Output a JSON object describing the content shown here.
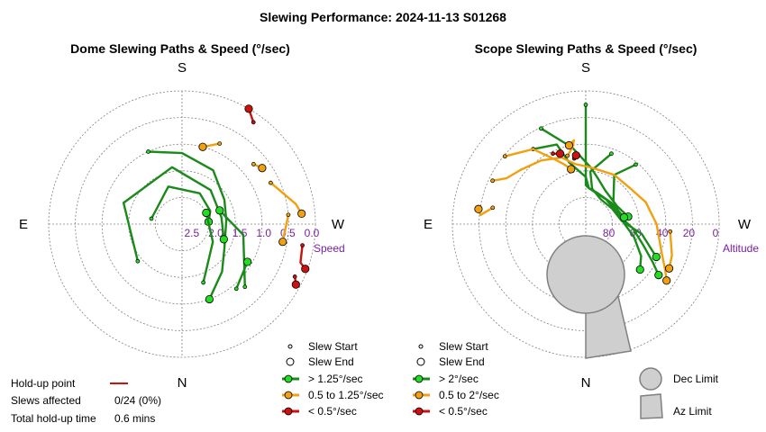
{
  "title": "Slewing Performance: 2024-11-13 S01268",
  "colors": {
    "fast": "#1a8a1a",
    "fast_dot": "#22dd22",
    "medium": "#f0a010",
    "slow": "#cc1111",
    "purple": "#7b1fa2",
    "grid": "#808080"
  },
  "dome": {
    "subtitle": "Dome Slewing Paths & Speed (°/sec)",
    "directions": {
      "s": "S",
      "n": "N",
      "e": "E",
      "w": "W"
    },
    "radial_labels": [
      "2.5",
      "2.0",
      "1.5",
      "1.0",
      "0.5",
      "0.0"
    ],
    "radial_axis_label": "Speed",
    "legend": {
      "start": "Slew Start",
      "end": "Slew End",
      "fast": "> 1.25°/sec",
      "medium": "0.5 to 1.25°/sec",
      "slow": "< 0.5°/sec"
    }
  },
  "scope": {
    "subtitle": "Scope Slewing Paths & Speed (°/sec)",
    "directions": {
      "s": "S",
      "n": "N",
      "e": "E",
      "w": "W"
    },
    "radial_labels": [
      "80",
      "60",
      "40",
      "20",
      "0"
    ],
    "radial_axis_label": "Altitude",
    "legend": {
      "start": "Slew Start",
      "end": "Slew End",
      "fast": "> 2°/sec",
      "medium": "0.5 to 2°/sec",
      "slow": "< 0.5°/sec"
    },
    "limits": {
      "dec": "Dec Limit",
      "az": "Az Limit"
    }
  },
  "holdup": {
    "point_label": "Hold-up point",
    "slews_label": "Slews affected",
    "slews_value": "0/24 (0%)",
    "time_label": "Total hold-up time",
    "time_value": "0.6 mins"
  },
  "chart_data": [
    {
      "type": "polar-paths",
      "name": "dome",
      "title": "Dome Slewing Paths & Speed (°/sec)",
      "radial_axis": "Speed",
      "radial_ticks": [
        2.5,
        2.0,
        1.5,
        1.0,
        0.5,
        0.0
      ],
      "note": "azimuth in degrees (S at top, W right, N bottom, E left); r = speed in °/sec, 0 at outer ring",
      "paths": [
        {
          "class": "fast",
          "points": [
            [
              205,
              1.2
            ],
            [
              180,
              1.4
            ],
            [
              150,
              1.6
            ],
            [
              120,
              1.9
            ],
            [
              95,
              2.0
            ],
            [
              60,
              1.9
            ],
            [
              40,
              1.6
            ],
            [
              20,
              1.2
            ]
          ]
        },
        {
          "class": "fast",
          "points": [
            [
              310,
              1.7
            ],
            [
              250,
              1.6
            ],
            [
              190,
              1.7
            ],
            [
              140,
              2.0
            ],
            [
              100,
              2.1
            ],
            [
              70,
              2.0
            ]
          ]
        },
        {
          "class": "fast",
          "points": [
            [
              45,
              1.0
            ],
            [
              80,
              1.6
            ],
            [
              110,
              2.1
            ]
          ]
        },
        {
          "class": "fast",
          "points": [
            [
              260,
              2.3
            ],
            [
              200,
              2.1
            ],
            [
              150,
              2.2
            ],
            [
              115,
              2.3
            ],
            [
              95,
              2.4
            ]
          ]
        },
        {
          "class": "fast",
          "points": [
            [
              20,
              1.6
            ],
            [
              60,
              2.2
            ],
            [
              115,
              2.4
            ]
          ]
        },
        {
          "class": "fast",
          "points": [
            [
              40,
              1.1
            ],
            [
              60,
              1.3
            ]
          ]
        },
        {
          "class": "medium",
          "points": [
            [
              130,
              0.9
            ],
            [
              125,
              0.8
            ]
          ]
        },
        {
          "class": "medium",
          "points": [
            [
              115,
              0.8
            ],
            [
              100,
              0.4
            ],
            [
              95,
              0.3
            ]
          ]
        },
        {
          "class": "medium",
          "points": [
            [
              95,
              0.6
            ],
            [
              80,
              0.7
            ]
          ]
        },
        {
          "class": "medium",
          "points": [
            [
              155,
              1.0
            ],
            [
              165,
              1.2
            ],
            [
              165,
              1.2
            ]
          ]
        },
        {
          "class": "slow",
          "points": [
            [
              145,
              0.2
            ],
            [
              150,
              0.0
            ]
          ]
        },
        {
          "class": "slow",
          "points": [
            [
              80,
              0.25
            ],
            [
              72,
              0.2
            ],
            [
              70,
              0.05
            ]
          ]
        },
        {
          "class": "slow",
          "points": [
            [
              65,
              0.2
            ],
            [
              62,
              0.1
            ]
          ]
        }
      ]
    },
    {
      "type": "polar-paths",
      "name": "scope",
      "title": "Scope Slewing Paths & Speed (°/sec)",
      "radial_axis": "Altitude",
      "radial_ticks": [
        80,
        60,
        40,
        20,
        0
      ],
      "note": "azimuth in degrees (S at top, W right, N bottom, E left); r = altitude in degrees, 90 at centre",
      "limits": {
        "dec_limit_circle": {
          "az": 0,
          "alt": 75,
          "radius_deg": 12
        },
        "az_limit_wedge": {
          "az_from": 338,
          "az_to": 358,
          "alt_from": 68,
          "alt_to": 0
        }
      },
      "paths": [
        {
          "class": "fast",
          "points": [
            [
              180,
              10
            ],
            [
              180,
              68
            ],
            [
              175,
              70
            ],
            [
              140,
              73
            ],
            [
              110,
              72
            ],
            [
              90,
              68
            ],
            [
              75,
              60
            ],
            [
              60,
              50
            ],
            [
              50,
              45
            ]
          ]
        },
        {
          "class": "fast",
          "points": [
            [
              160,
              42
            ],
            [
              175,
              58
            ],
            [
              170,
              70
            ],
            [
              150,
              75
            ],
            [
              120,
              74
            ],
            [
              95,
              70
            ],
            [
              80,
              55
            ],
            [
              65,
              40
            ]
          ]
        },
        {
          "class": "fast",
          "points": [
            [
              140,
              40
            ],
            [
              150,
              55
            ],
            [
              130,
              70
            ],
            [
              100,
              70
            ],
            [
              85,
              62
            ],
            [
              70,
              52
            ],
            [
              60,
              40
            ],
            [
              55,
              32
            ]
          ]
        },
        {
          "class": "fast",
          "points": [
            [
              205,
              20
            ],
            [
              190,
              40
            ],
            [
              175,
              55
            ],
            [
              165,
              62
            ],
            [
              150,
              68
            ],
            [
              120,
              70
            ],
            [
              100,
              65
            ]
          ]
        },
        {
          "class": "fast",
          "points": [
            [
              215,
              30
            ],
            [
              200,
              35
            ],
            [
              195,
              50
            ],
            [
              180,
              62
            ],
            [
              175,
              70
            ],
            [
              160,
              72
            ],
            [
              130,
              72
            ],
            [
              100,
              68
            ]
          ]
        },
        {
          "class": "medium",
          "points": [
            [
              230,
              20
            ],
            [
              215,
              30
            ],
            [
              205,
              45
            ],
            [
              200,
              50
            ],
            [
              195,
              55
            ]
          ]
        },
        {
          "class": "medium",
          "points": [
            [
              245,
              22
            ],
            [
              240,
              30
            ],
            [
              230,
              35
            ],
            [
              215,
              40
            ],
            [
              200,
              45
            ],
            [
              190,
              52
            ],
            [
              175,
              55
            ],
            [
              150,
              55
            ],
            [
              130,
              55
            ],
            [
              110,
              50
            ],
            [
              90,
              45
            ],
            [
              70,
              38
            ],
            [
              60,
              30
            ],
            [
              55,
              25
            ]
          ]
        },
        {
          "class": "medium",
          "points": [
            [
              260,
              28
            ],
            [
              265,
              20
            ],
            [
              262,
              18
            ]
          ]
        },
        {
          "class": "medium",
          "points": [
            [
              195,
              45
            ],
            [
              190,
              40
            ],
            [
              188,
              35
            ],
            [
              192,
              38
            ]
          ]
        },
        {
          "class": "medium",
          "points": [
            [
              85,
              35
            ],
            [
              70,
              30
            ],
            [
              62,
              28
            ]
          ]
        },
        {
          "class": "slow",
          "points": [
            [
              190,
              48
            ],
            [
              188,
              46
            ]
          ]
        },
        {
          "class": "slow",
          "points": [
            [
              205,
              40
            ],
            [
              200,
              42
            ]
          ]
        }
      ]
    }
  ]
}
